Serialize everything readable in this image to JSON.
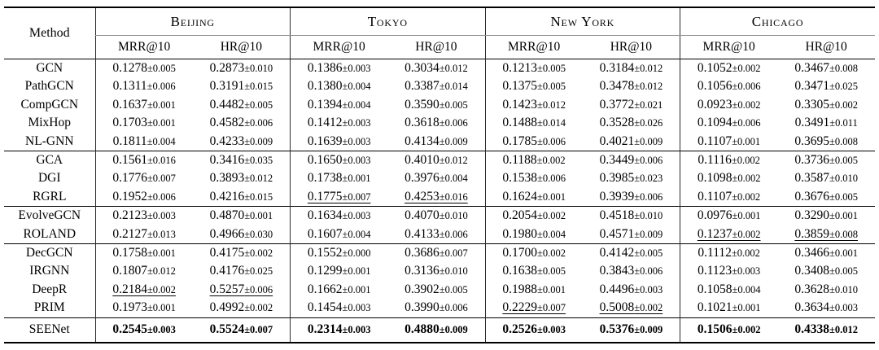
{
  "table": {
    "method_header": "Method",
    "cities": [
      {
        "name": "Beijing",
        "metrics": [
          "MRR@10",
          "HR@10"
        ]
      },
      {
        "name": "Tokyo",
        "metrics": [
          "MRR@10",
          "HR@10"
        ]
      },
      {
        "name": "New York",
        "metrics": [
          "MRR@10",
          "HR@10"
        ]
      },
      {
        "name": "Chicago",
        "metrics": [
          "MRR@10",
          "HR@10"
        ]
      }
    ],
    "blocks": [
      {
        "rows": [
          {
            "method": "GCN",
            "values": [
              "0.1278±0.005",
              "0.2873±0.010",
              "0.1386±0.003",
              "0.3034±0.012",
              "0.1213±0.005",
              "0.3184±0.012",
              "0.1052±0.002",
              "0.3467±0.008"
            ],
            "underline": [],
            "bold": false
          },
          {
            "method": "PathGCN",
            "values": [
              "0.1311±0.006",
              "0.3191±0.015",
              "0.1380±0.004",
              "0.3387±0.014",
              "0.1375±0.005",
              "0.3478±0.012",
              "0.1056±0.006",
              "0.3471±0.025"
            ],
            "underline": [],
            "bold": false
          },
          {
            "method": "CompGCN",
            "values": [
              "0.1637±0.001",
              "0.4482±0.005",
              "0.1394±0.004",
              "0.3590±0.005",
              "0.1423±0.012",
              "0.3772±0.021",
              "0.0923±0.002",
              "0.3305±0.002"
            ],
            "underline": [],
            "bold": false
          },
          {
            "method": "MixHop",
            "values": [
              "0.1703±0.001",
              "0.4582±0.006",
              "0.1412±0.003",
              "0.3618±0.006",
              "0.1488±0.014",
              "0.3528±0.026",
              "0.1094±0.006",
              "0.3491±0.011"
            ],
            "underline": [],
            "bold": false
          },
          {
            "method": "NL-GNN",
            "values": [
              "0.1811±0.004",
              "0.4233±0.009",
              "0.1639±0.003",
              "0.4134±0.009",
              "0.1785±0.006",
              "0.4021±0.009",
              "0.1107±0.001",
              "0.3695±0.008"
            ],
            "underline": [],
            "bold": false
          }
        ]
      },
      {
        "rows": [
          {
            "method": "GCA",
            "values": [
              "0.1561±0.016",
              "0.3416±0.035",
              "0.1650±0.003",
              "0.4010±0.012",
              "0.1188±0.002",
              "0.3449±0.006",
              "0.1116±0.002",
              "0.3736±0.005"
            ],
            "underline": [],
            "bold": false
          },
          {
            "method": "DGI",
            "values": [
              "0.1776±0.007",
              "0.3893±0.012",
              "0.1738±0.001",
              "0.3976±0.004",
              "0.1538±0.006",
              "0.3985±0.023",
              "0.1098±0.002",
              "0.3587±0.010"
            ],
            "underline": [],
            "bold": false
          },
          {
            "method": "RGRL",
            "values": [
              "0.1952±0.006",
              "0.4216±0.015",
              "0.1775±0.007",
              "0.4253±0.016",
              "0.1624±0.001",
              "0.3939±0.006",
              "0.1107±0.002",
              "0.3676±0.005"
            ],
            "underline": [
              2,
              3
            ],
            "bold": false
          }
        ]
      },
      {
        "rows": [
          {
            "method": "EvolveGCN",
            "values": [
              "0.2123±0.003",
              "0.4870±0.001",
              "0.1634±0.003",
              "0.4070±0.010",
              "0.2054±0.002",
              "0.4518±0.010",
              "0.0976±0.001",
              "0.3290±0.001"
            ],
            "underline": [],
            "bold": false
          },
          {
            "method": "ROLAND",
            "values": [
              "0.2127±0.013",
              "0.4966±0.030",
              "0.1607±0.004",
              "0.4133±0.006",
              "0.1980±0.004",
              "0.4571±0.009",
              "0.1237±0.002",
              "0.3859±0.008"
            ],
            "underline": [
              6,
              7
            ],
            "bold": false
          }
        ]
      },
      {
        "rows": [
          {
            "method": "DecGCN",
            "values": [
              "0.1758±0.001",
              "0.4175±0.002",
              "0.1552±0.000",
              "0.3686±0.007",
              "0.1700±0.002",
              "0.4142±0.005",
              "0.1112±0.002",
              "0.3466±0.001"
            ],
            "underline": [],
            "bold": false
          },
          {
            "method": "IRGNN",
            "values": [
              "0.1807±0.012",
              "0.4176±0.025",
              "0.1299±0.001",
              "0.3136±0.010",
              "0.1638±0.005",
              "0.3843±0.006",
              "0.1123±0.003",
              "0.3408±0.005"
            ],
            "underline": [],
            "bold": false
          },
          {
            "method": "DeepR",
            "values": [
              "0.2184±0.002",
              "0.5257±0.006",
              "0.1662±0.001",
              "0.3902±0.005",
              "0.1988±0.001",
              "0.4496±0.003",
              "0.1058±0.004",
              "0.3628±0.010"
            ],
            "underline": [
              0,
              1
            ],
            "bold": false
          },
          {
            "method": "PRIM",
            "values": [
              "0.1973±0.001",
              "0.4992±0.002",
              "0.1454±0.003",
              "0.3990±0.006",
              "0.2229±0.007",
              "0.5008±0.002",
              "0.1021±0.001",
              "0.3634±0.003"
            ],
            "underline": [
              4,
              5
            ],
            "bold": false
          }
        ]
      },
      {
        "rows": [
          {
            "method": "SEENet",
            "values": [
              "0.2545±0.003",
              "0.5524±0.007",
              "0.2314±0.003",
              "0.4880±0.009",
              "0.2526±0.003",
              "0.5376±0.009",
              "0.1506±0.002",
              "0.4338±0.012"
            ],
            "underline": [],
            "bold": true
          }
        ]
      }
    ]
  }
}
